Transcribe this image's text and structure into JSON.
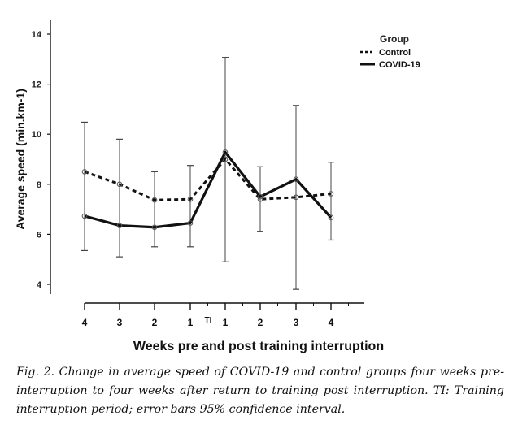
{
  "chart_data": {
    "type": "line",
    "xlabel": "Weeks pre and post training interruption",
    "ylabel": "Average speed (min.km-1)",
    "ylim": [
      4,
      14
    ],
    "yticks": [
      4,
      6,
      8,
      10,
      12,
      14
    ],
    "categories": [
      "4",
      "3",
      "2",
      "1",
      "1",
      "2",
      "3",
      "4"
    ],
    "interruption_label": "TI",
    "legend": {
      "title": "Group",
      "placement": "top-right"
    },
    "series": [
      {
        "name": "Control",
        "style": "dashed",
        "values": [
          8.5,
          8.0,
          7.37,
          7.4,
          9.0,
          7.4,
          7.48,
          7.62
        ],
        "ci_low": [
          6.52,
          6.2,
          6.25,
          6.05,
          4.9,
          6.12,
          3.8,
          6.36
        ],
        "ci_high": [
          10.48,
          9.8,
          8.5,
          8.75,
          13.07,
          8.7,
          11.15,
          8.88
        ]
      },
      {
        "name": "COVID-19",
        "style": "solid",
        "values": [
          6.73,
          6.35,
          6.28,
          6.45,
          9.28,
          7.5,
          8.2,
          6.67
        ],
        "ci_low": [
          5.35,
          5.1,
          5.5,
          5.5,
          6.4,
          6.3,
          5.6,
          5.77
        ],
        "ci_high": [
          8.1,
          7.6,
          7.06,
          7.4,
          12.2,
          8.7,
          10.8,
          7.57
        ]
      }
    ]
  },
  "caption": {
    "label": "Fig. 2.",
    "text": "Change in average speed of COVID-19 and control groups four weeks pre-interruption to four weeks after return to training post interruption. TI: Training interruption period; error bars 95% confidence interval."
  }
}
